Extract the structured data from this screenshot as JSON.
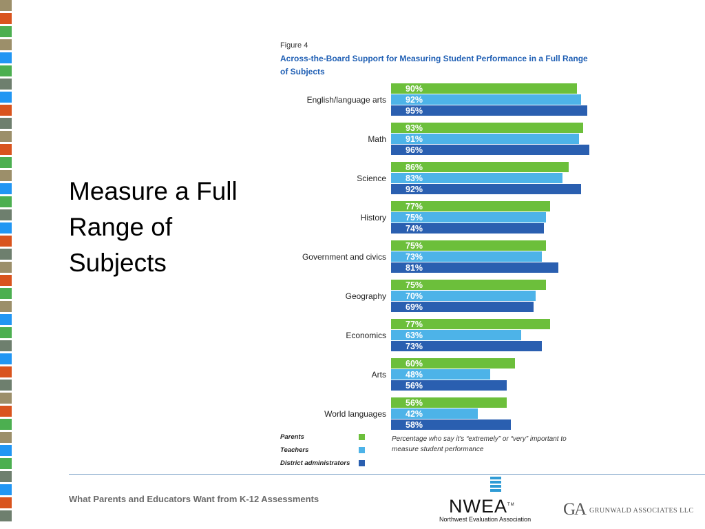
{
  "slide": {
    "title": "Measure a Full Range of Subjects",
    "footer": "What Parents and Educators Want from K-12 Assessments"
  },
  "figure": {
    "label": "Figure 4",
    "title": "Across-the-Board Support for Measuring Student Performance in a Full Range of Subjects",
    "note": "Percentage who say it's “extremely” or “very” important to measure student performance"
  },
  "chart_data": {
    "type": "bar",
    "orientation": "horizontal",
    "title": "Across-the-Board Support for Measuring Student Performance in a Full Range of Subjects",
    "categories": [
      "English/language arts",
      "Math",
      "Science",
      "History",
      "Government and civics",
      "Geography",
      "Economics",
      "Arts",
      "World languages"
    ],
    "series": [
      {
        "name": "Parents",
        "color": "#6cbf3b",
        "values": [
          90,
          93,
          86,
          77,
          75,
          75,
          77,
          60,
          56
        ]
      },
      {
        "name": "Teachers",
        "color": "#4db3e8",
        "values": [
          92,
          91,
          83,
          75,
          73,
          70,
          63,
          48,
          42
        ]
      },
      {
        "name": "District administrators",
        "color": "#2a5fb0",
        "values": [
          95,
          96,
          92,
          74,
          81,
          69,
          73,
          56,
          58
        ]
      }
    ],
    "value_suffix": "%",
    "xlim": [
      0,
      100
    ],
    "grid": false,
    "legend_position": "bottom-left"
  },
  "logos": {
    "nwea": "NWEA",
    "nwea_tm": "TM",
    "nwea_sub": "Northwest Evaluation Association",
    "ga_mark": "GA",
    "ga_word": "GRUNWALD ASSOCIATES LLC"
  },
  "colors": {
    "strip": [
      "#9c8f6a",
      "#4caf50",
      "#2196f3",
      "#6e7f6e",
      "#d9541e"
    ]
  }
}
